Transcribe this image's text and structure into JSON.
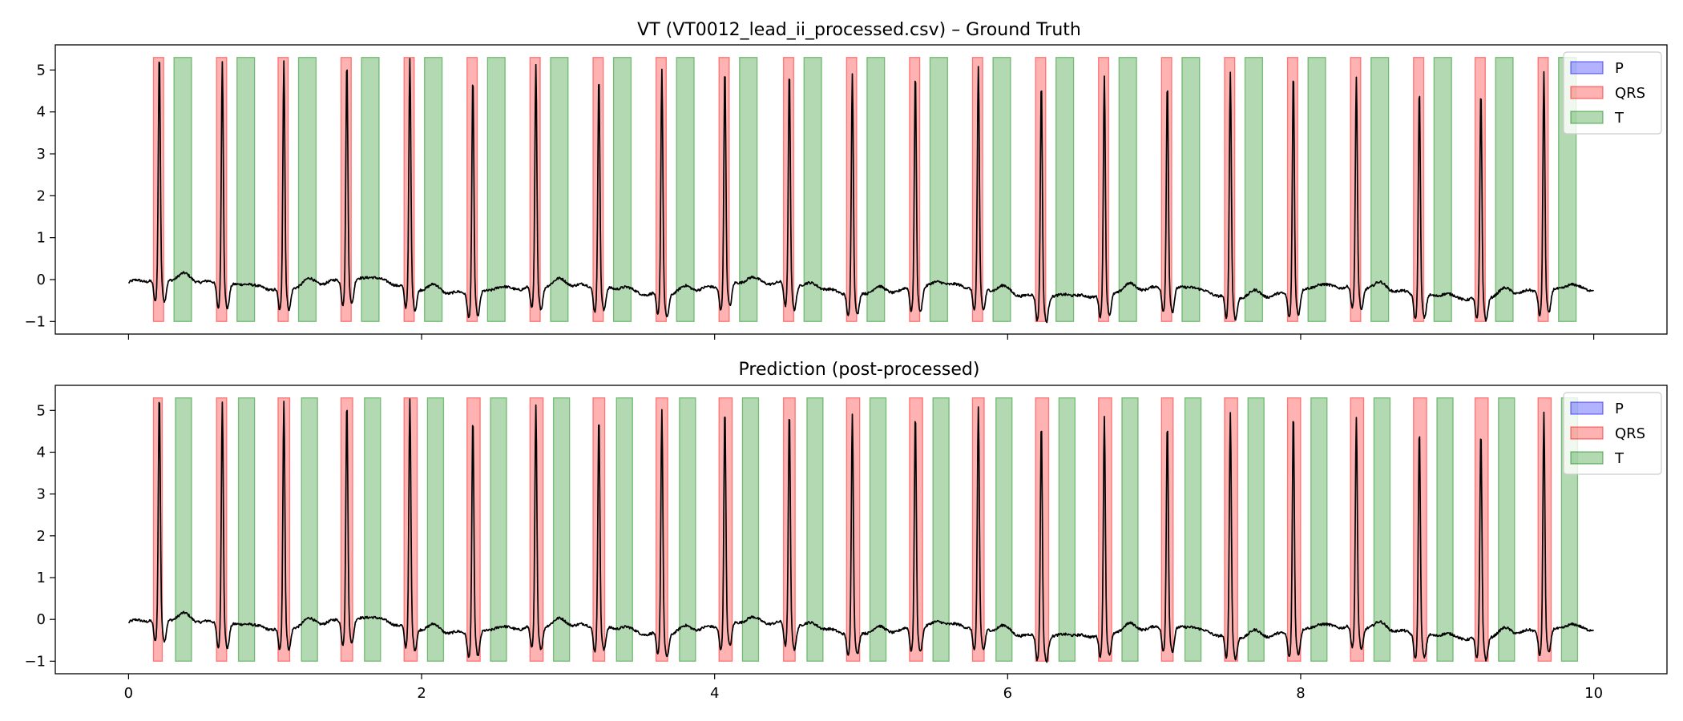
{
  "chart_data": [
    {
      "type": "line",
      "title": "VT (VT0012_lead_ii_processed.csv) – Ground Truth",
      "xlabel": "",
      "ylabel": "",
      "xlim": [
        -0.5,
        10.5
      ],
      "ylim": [
        -1.3,
        5.6
      ],
      "xticks": [
        "0",
        "2",
        "4",
        "6",
        "8",
        "10"
      ],
      "yticks": [
        "−1",
        "0",
        "1",
        "2",
        "3",
        "4",
        "5"
      ],
      "show_xtick_labels": false,
      "grid": false,
      "legend": {
        "position": "top-right",
        "entries": [
          "P",
          "QRS",
          "T"
        ]
      },
      "series_colors": {
        "signal": "#000000",
        "P": "#0000ff",
        "QRS": "#ff0000",
        "T": "#008000"
      },
      "band_range": [
        -1.0,
        5.3
      ],
      "qrs_intervals": [
        [
          0.17,
          0.24
        ],
        [
          0.6,
          0.67
        ],
        [
          1.02,
          1.09
        ],
        [
          1.45,
          1.52
        ],
        [
          1.88,
          1.95
        ],
        [
          2.31,
          2.38
        ],
        [
          2.74,
          2.81
        ],
        [
          3.17,
          3.24
        ],
        [
          3.6,
          3.67
        ],
        [
          4.03,
          4.1
        ],
        [
          4.47,
          4.54
        ],
        [
          4.9,
          4.97
        ],
        [
          5.33,
          5.4
        ],
        [
          5.76,
          5.83
        ],
        [
          6.19,
          6.26
        ],
        [
          6.62,
          6.69
        ],
        [
          7.05,
          7.12
        ],
        [
          7.48,
          7.55
        ],
        [
          7.91,
          7.98
        ],
        [
          8.34,
          8.41
        ],
        [
          8.77,
          8.84
        ],
        [
          9.19,
          9.26
        ],
        [
          9.62,
          9.69
        ]
      ],
      "t_intervals": [
        [
          0.31,
          0.43
        ],
        [
          0.74,
          0.86
        ],
        [
          1.16,
          1.28
        ],
        [
          1.59,
          1.71
        ],
        [
          2.02,
          2.14
        ],
        [
          2.45,
          2.57
        ],
        [
          2.88,
          3.0
        ],
        [
          3.31,
          3.43
        ],
        [
          3.74,
          3.86
        ],
        [
          4.17,
          4.29
        ],
        [
          4.61,
          4.73
        ],
        [
          5.04,
          5.16
        ],
        [
          5.47,
          5.59
        ],
        [
          5.9,
          6.02
        ],
        [
          6.33,
          6.45
        ],
        [
          6.76,
          6.88
        ],
        [
          7.19,
          7.31
        ],
        [
          7.62,
          7.74
        ],
        [
          8.05,
          8.17
        ],
        [
          8.48,
          8.6
        ],
        [
          8.91,
          9.03
        ],
        [
          9.33,
          9.45
        ],
        [
          9.76,
          9.88
        ]
      ],
      "p_intervals": [],
      "peaks": [
        {
          "t": 0.21,
          "amp": 5.25
        },
        {
          "t": 0.64,
          "amp": 5.25
        },
        {
          "t": 1.06,
          "amp": 5.25
        },
        {
          "t": 1.49,
          "amp": 5.15
        },
        {
          "t": 1.92,
          "amp": 5.25
        },
        {
          "t": 2.35,
          "amp": 5.1
        },
        {
          "t": 2.78,
          "amp": 5.1
        },
        {
          "t": 3.21,
          "amp": 5.0
        },
        {
          "t": 3.64,
          "amp": 5.2
        },
        {
          "t": 4.07,
          "amp": 5.1
        },
        {
          "t": 4.51,
          "amp": 5.0
        },
        {
          "t": 4.94,
          "amp": 5.1
        },
        {
          "t": 5.37,
          "amp": 5.05
        },
        {
          "t": 5.8,
          "amp": 5.1
        },
        {
          "t": 6.23,
          "amp": 5.05
        },
        {
          "t": 6.66,
          "amp": 5.0
        },
        {
          "t": 7.09,
          "amp": 4.85
        },
        {
          "t": 7.52,
          "amp": 5.15
        },
        {
          "t": 7.95,
          "amp": 5.2
        },
        {
          "t": 8.38,
          "amp": 4.8
        },
        {
          "t": 8.81,
          "amp": 4.85
        },
        {
          "t": 9.23,
          "amp": 4.8
        },
        {
          "t": 9.66,
          "amp": 5.1
        }
      ]
    },
    {
      "type": "line",
      "title": "Prediction (post-processed)",
      "xlabel": "",
      "ylabel": "",
      "xlim": [
        -0.5,
        10.5
      ],
      "ylim": [
        -1.3,
        5.6
      ],
      "xticks": [
        "0",
        "2",
        "4",
        "6",
        "8",
        "10"
      ],
      "yticks": [
        "−1",
        "0",
        "1",
        "2",
        "3",
        "4",
        "5"
      ],
      "show_xtick_labels": true,
      "grid": false,
      "legend": {
        "position": "top-right",
        "entries": [
          "P",
          "QRS",
          "T"
        ]
      },
      "series_colors": {
        "signal": "#000000",
        "P": "#0000ff",
        "QRS": "#ff0000",
        "T": "#008000"
      },
      "band_range": [
        -1.0,
        5.3
      ],
      "qrs_intervals": [
        [
          0.17,
          0.23
        ],
        [
          0.6,
          0.67
        ],
        [
          1.02,
          1.1
        ],
        [
          1.45,
          1.53
        ],
        [
          1.88,
          1.97
        ],
        [
          2.31,
          2.4
        ],
        [
          2.74,
          2.83
        ],
        [
          3.17,
          3.25
        ],
        [
          3.6,
          3.68
        ],
        [
          4.03,
          4.12
        ],
        [
          4.47,
          4.55
        ],
        [
          4.9,
          4.99
        ],
        [
          5.33,
          5.42
        ],
        [
          5.76,
          5.84
        ],
        [
          6.19,
          6.28
        ],
        [
          6.62,
          6.71
        ],
        [
          7.05,
          7.13
        ],
        [
          7.48,
          7.57
        ],
        [
          7.91,
          8.0
        ],
        [
          8.34,
          8.43
        ],
        [
          8.77,
          8.86
        ],
        [
          9.19,
          9.28
        ],
        [
          9.62,
          9.71
        ]
      ],
      "t_intervals": [
        [
          0.32,
          0.43
        ],
        [
          0.75,
          0.86
        ],
        [
          1.18,
          1.29
        ],
        [
          1.61,
          1.72
        ],
        [
          2.04,
          2.15
        ],
        [
          2.47,
          2.58
        ],
        [
          2.9,
          3.01
        ],
        [
          3.33,
          3.44
        ],
        [
          3.76,
          3.87
        ],
        [
          4.19,
          4.3
        ],
        [
          4.63,
          4.74
        ],
        [
          5.06,
          5.17
        ],
        [
          5.49,
          5.6
        ],
        [
          5.92,
          6.03
        ],
        [
          6.35,
          6.46
        ],
        [
          6.78,
          6.89
        ],
        [
          7.21,
          7.32
        ],
        [
          7.64,
          7.75
        ],
        [
          8.07,
          8.18
        ],
        [
          8.5,
          8.61
        ],
        [
          8.93,
          9.04
        ],
        [
          9.35,
          9.46
        ],
        [
          9.78,
          9.89
        ]
      ],
      "p_intervals": [],
      "peaks": [
        {
          "t": 0.21,
          "amp": 5.25
        },
        {
          "t": 0.64,
          "amp": 5.25
        },
        {
          "t": 1.06,
          "amp": 5.25
        },
        {
          "t": 1.49,
          "amp": 5.15
        },
        {
          "t": 1.92,
          "amp": 5.25
        },
        {
          "t": 2.35,
          "amp": 5.1
        },
        {
          "t": 2.78,
          "amp": 5.1
        },
        {
          "t": 3.21,
          "amp": 5.0
        },
        {
          "t": 3.64,
          "amp": 5.2
        },
        {
          "t": 4.07,
          "amp": 5.1
        },
        {
          "t": 4.51,
          "amp": 5.0
        },
        {
          "t": 4.94,
          "amp": 5.1
        },
        {
          "t": 5.37,
          "amp": 5.05
        },
        {
          "t": 5.8,
          "amp": 5.1
        },
        {
          "t": 6.23,
          "amp": 5.05
        },
        {
          "t": 6.66,
          "amp": 5.0
        },
        {
          "t": 7.09,
          "amp": 4.85
        },
        {
          "t": 7.52,
          "amp": 5.15
        },
        {
          "t": 7.95,
          "amp": 5.2
        },
        {
          "t": 8.38,
          "amp": 4.8
        },
        {
          "t": 8.81,
          "amp": 4.85
        },
        {
          "t": 9.23,
          "amp": 4.8
        },
        {
          "t": 9.66,
          "amp": 5.1
        }
      ]
    }
  ]
}
